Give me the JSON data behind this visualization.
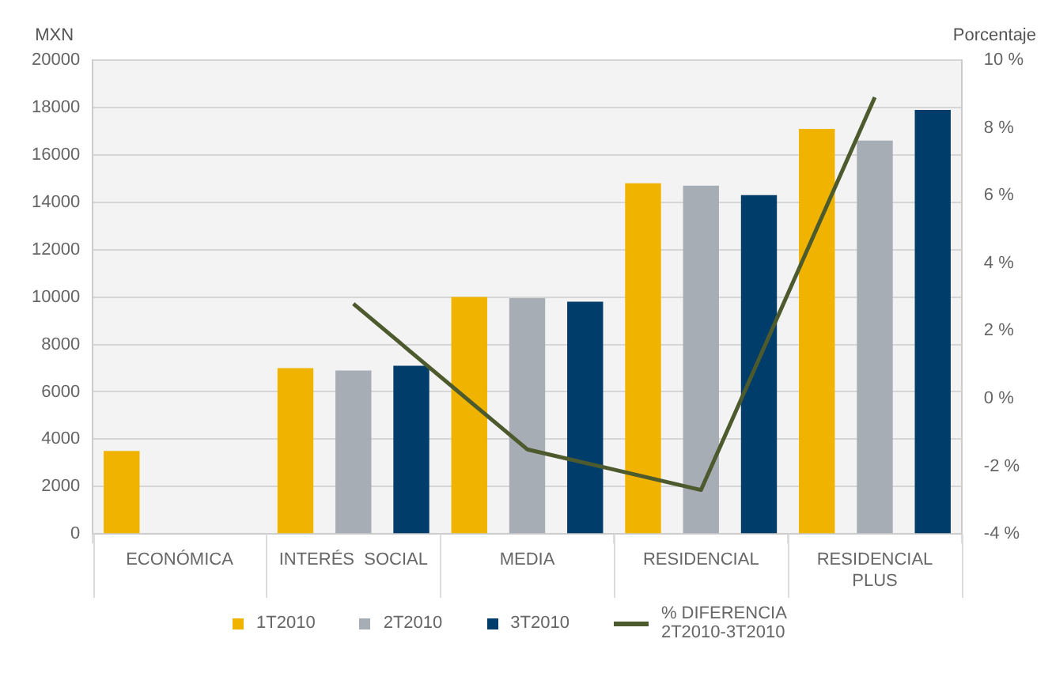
{
  "chart_data": {
    "type": "bar",
    "ylabel": "MXN",
    "y2label": "Porcentaje",
    "categories": [
      "ECONÓMICA",
      "INTERÉS  SOCIAL",
      "MEDIA",
      "RESIDENCIAL",
      "RESIDENCIAL PLUS"
    ],
    "series": [
      {
        "name": "1T2010",
        "color": "#f0b400",
        "values": [
          3500,
          7000,
          10000,
          14800,
          17100
        ]
      },
      {
        "name": "2T2010",
        "color": "#a7adb5",
        "values": [
          null,
          6900,
          9950,
          14700,
          16600
        ]
      },
      {
        "name": "3T2010",
        "color": "#003d6b",
        "values": [
          null,
          7100,
          9800,
          14300,
          17900
        ]
      },
      {
        "name": "% DIFERENCIA 2T2010-3T2010",
        "type": "line",
        "axis": "y2",
        "color": "#4d5a2e",
        "values": [
          null,
          2.8,
          -1.5,
          -2.7,
          8.9
        ]
      }
    ],
    "ylim": [
      0,
      20000
    ],
    "yticks": [
      0,
      2000,
      4000,
      6000,
      8000,
      10000,
      12000,
      14000,
      16000,
      18000,
      20000
    ],
    "y2lim": [
      -4,
      10
    ],
    "y2ticks": [
      {
        "value": -4,
        "label": "-4 %"
      },
      {
        "value": -2,
        "label": "-2 %"
      },
      {
        "value": 0,
        "label": "0 %"
      },
      {
        "value": 2,
        "label": "2 %"
      },
      {
        "value": 4,
        "label": "4 %"
      },
      {
        "value": 6,
        "label": "6 %"
      },
      {
        "value": 8,
        "label": "8 %"
      },
      {
        "value": 10,
        "label": "10 %"
      }
    ],
    "grid": "y",
    "legend": "bottom",
    "marker": "none",
    "line_style": "solid"
  }
}
